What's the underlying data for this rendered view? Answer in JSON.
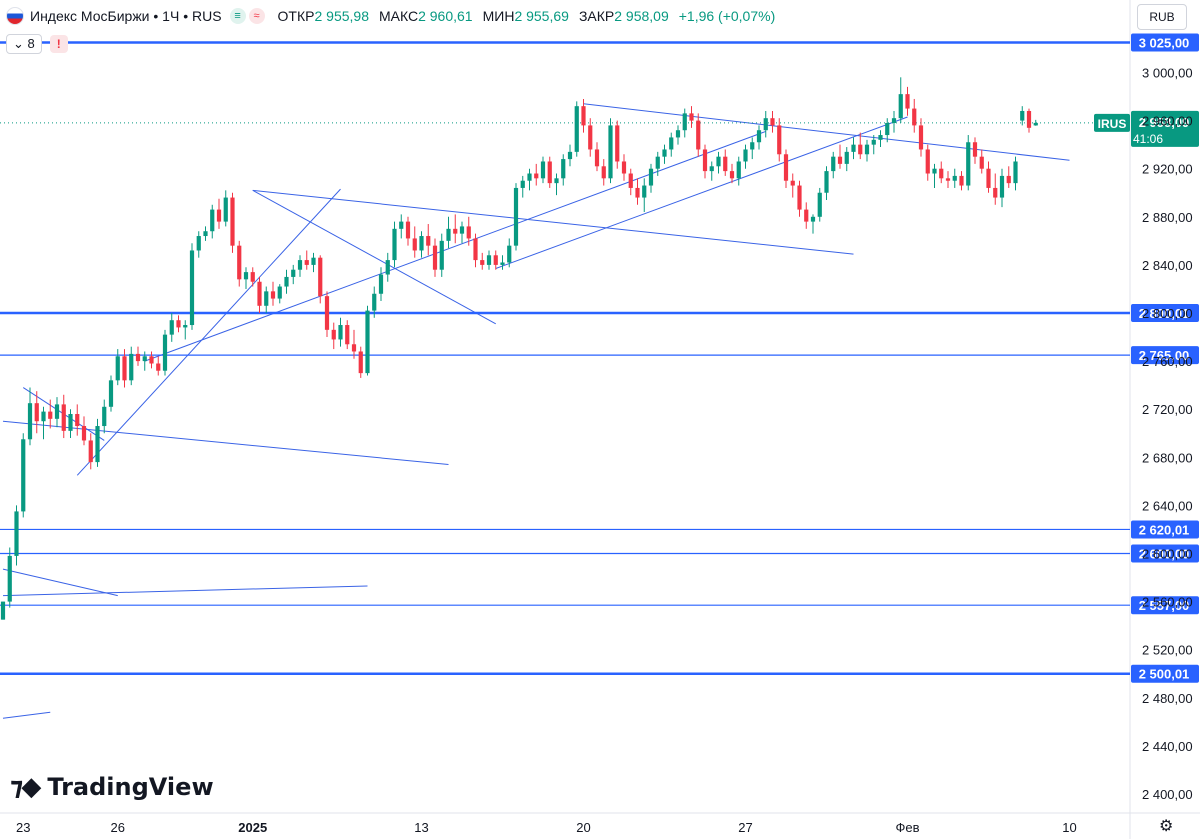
{
  "header": {
    "symbol_title": "Индекс МосБиржи • 1Ч • RUS",
    "badge_green": "≡",
    "badge_red": "≈",
    "ohlc": [
      {
        "label": "ОТКР",
        "value": "2 955,98"
      },
      {
        "label": "МАКС",
        "value": "2 960,61"
      },
      {
        "label": "МИН",
        "value": "2 955,69"
      },
      {
        "label": "ЗАКР",
        "value": "2 958,09"
      }
    ],
    "change": "+1,96 (+0,07%)",
    "indicator_count": "8",
    "warning": "!"
  },
  "currency_button": "RUB",
  "brand": "TradingView",
  "colors": {
    "up": "#089981",
    "down": "#f23645",
    "line": "#2962ff",
    "trend": "#3a63e6"
  },
  "chart_data": {
    "type": "candlestick",
    "symbol": "Индекс МосБиржи",
    "timeframe": "1Ч",
    "ylim": [
      2380,
      3040
    ],
    "y_ticks": [
      2400,
      2440,
      2480,
      2520,
      2560,
      2600,
      2640,
      2680,
      2720,
      2760,
      2800,
      2840,
      2880,
      2920,
      2960,
      3000
    ],
    "y_tick_labels": [
      "2 400,00",
      "2 440,00",
      "2 480,00",
      "2 520,00",
      "2 560,00",
      "2 600,00",
      "2 640,00",
      "2 680,00",
      "2 720,00",
      "2 760,00",
      "2 800,00",
      "2 840,00",
      "2 880,00",
      "2 920,00",
      "2 960,00",
      "3 000,00"
    ],
    "x_labels": [
      {
        "label": "23",
        "i": 3
      },
      {
        "label": "26",
        "i": 17
      },
      {
        "label": "2025",
        "i": 37
      },
      {
        "label": "13",
        "i": 62
      },
      {
        "label": "20",
        "i": 86
      },
      {
        "label": "27",
        "i": 110
      },
      {
        "label": "Фев",
        "i": 134
      },
      {
        "label": "10",
        "i": 158
      }
    ],
    "horizontal_levels": [
      {
        "value": 3025.0,
        "label": "3 025,00",
        "bold": true
      },
      {
        "value": 2800.01,
        "label": "2 800,01",
        "bold": true
      },
      {
        "value": 2765.0,
        "label": "2 765,00",
        "bold": false
      },
      {
        "value": 2620.01,
        "label": "2 620,01",
        "bold": false
      },
      {
        "value": 2600.0,
        "label": "2 600,00",
        "bold": false
      },
      {
        "value": 2557.0,
        "label": "2 557,00",
        "bold": false
      },
      {
        "value": 2500.01,
        "label": "2 500,01",
        "bold": true
      }
    ],
    "last_price": {
      "value": 2958.09,
      "label": "2 958,09",
      "ticker": "IRUS",
      "countdown": "41:06"
    },
    "trendlines": [
      [
        0,
        2710,
        66,
        2674
      ],
      [
        3,
        2738,
        15,
        2694
      ],
      [
        11,
        2665,
        50,
        2903
      ],
      [
        21,
        2760,
        113,
        2951
      ],
      [
        37,
        2902,
        73,
        2791
      ],
      [
        37,
        2902,
        126,
        2849
      ],
      [
        73,
        2837,
        134,
        2963
      ],
      [
        86,
        2974,
        158,
        2927
      ],
      [
        0,
        2587,
        17,
        2565
      ],
      [
        0,
        2565,
        54,
        2573
      ],
      [
        0,
        2463,
        7,
        2468
      ]
    ],
    "candles": [
      {
        "o": 2545,
        "h": 2560,
        "l": 2545,
        "c": 2560
      },
      {
        "o": 2560,
        "h": 2605,
        "l": 2555,
        "c": 2598
      },
      {
        "o": 2598,
        "h": 2640,
        "l": 2590,
        "c": 2635
      },
      {
        "o": 2635,
        "h": 2700,
        "l": 2630,
        "c": 2695
      },
      {
        "o": 2695,
        "h": 2738,
        "l": 2690,
        "c": 2725
      },
      {
        "o": 2725,
        "h": 2735,
        "l": 2700,
        "c": 2710
      },
      {
        "o": 2710,
        "h": 2722,
        "l": 2695,
        "c": 2718
      },
      {
        "o": 2718,
        "h": 2728,
        "l": 2704,
        "c": 2712
      },
      {
        "o": 2712,
        "h": 2730,
        "l": 2705,
        "c": 2724
      },
      {
        "o": 2724,
        "h": 2732,
        "l": 2696,
        "c": 2702
      },
      {
        "o": 2702,
        "h": 2720,
        "l": 2696,
        "c": 2716
      },
      {
        "o": 2716,
        "h": 2724,
        "l": 2698,
        "c": 2706
      },
      {
        "o": 2706,
        "h": 2714,
        "l": 2690,
        "c": 2694
      },
      {
        "o": 2694,
        "h": 2700,
        "l": 2670,
        "c": 2676
      },
      {
        "o": 2676,
        "h": 2712,
        "l": 2672,
        "c": 2706
      },
      {
        "o": 2706,
        "h": 2728,
        "l": 2700,
        "c": 2722
      },
      {
        "o": 2722,
        "h": 2748,
        "l": 2718,
        "c": 2744
      },
      {
        "o": 2744,
        "h": 2770,
        "l": 2740,
        "c": 2764
      },
      {
        "o": 2764,
        "h": 2770,
        "l": 2738,
        "c": 2744
      },
      {
        "o": 2744,
        "h": 2772,
        "l": 2740,
        "c": 2766
      },
      {
        "o": 2766,
        "h": 2772,
        "l": 2756,
        "c": 2760
      },
      {
        "o": 2760,
        "h": 2768,
        "l": 2752,
        "c": 2764
      },
      {
        "o": 2764,
        "h": 2768,
        "l": 2754,
        "c": 2758
      },
      {
        "o": 2758,
        "h": 2764,
        "l": 2748,
        "c": 2752
      },
      {
        "o": 2752,
        "h": 2786,
        "l": 2748,
        "c": 2782
      },
      {
        "o": 2782,
        "h": 2800,
        "l": 2776,
        "c": 2794
      },
      {
        "o": 2794,
        "h": 2798,
        "l": 2784,
        "c": 2788
      },
      {
        "o": 2788,
        "h": 2794,
        "l": 2778,
        "c": 2790
      },
      {
        "o": 2790,
        "h": 2858,
        "l": 2786,
        "c": 2852
      },
      {
        "o": 2852,
        "h": 2868,
        "l": 2846,
        "c": 2864
      },
      {
        "o": 2864,
        "h": 2872,
        "l": 2860,
        "c": 2868
      },
      {
        "o": 2868,
        "h": 2890,
        "l": 2862,
        "c": 2886
      },
      {
        "o": 2886,
        "h": 2895,
        "l": 2870,
        "c": 2876
      },
      {
        "o": 2876,
        "h": 2902,
        "l": 2872,
        "c": 2896
      },
      {
        "o": 2896,
        "h": 2900,
        "l": 2850,
        "c": 2856
      },
      {
        "o": 2856,
        "h": 2860,
        "l": 2822,
        "c": 2828
      },
      {
        "o": 2828,
        "h": 2838,
        "l": 2820,
        "c": 2834
      },
      {
        "o": 2834,
        "h": 2838,
        "l": 2822,
        "c": 2826
      },
      {
        "o": 2826,
        "h": 2830,
        "l": 2800,
        "c": 2806
      },
      {
        "o": 2806,
        "h": 2822,
        "l": 2800,
        "c": 2818
      },
      {
        "o": 2818,
        "h": 2826,
        "l": 2806,
        "c": 2812
      },
      {
        "o": 2812,
        "h": 2824,
        "l": 2808,
        "c": 2822
      },
      {
        "o": 2822,
        "h": 2836,
        "l": 2816,
        "c": 2830
      },
      {
        "o": 2830,
        "h": 2840,
        "l": 2824,
        "c": 2836
      },
      {
        "o": 2836,
        "h": 2848,
        "l": 2830,
        "c": 2844
      },
      {
        "o": 2844,
        "h": 2852,
        "l": 2836,
        "c": 2840
      },
      {
        "o": 2840,
        "h": 2850,
        "l": 2834,
        "c": 2846
      },
      {
        "o": 2846,
        "h": 2848,
        "l": 2808,
        "c": 2814
      },
      {
        "o": 2814,
        "h": 2818,
        "l": 2780,
        "c": 2786
      },
      {
        "o": 2786,
        "h": 2792,
        "l": 2770,
        "c": 2778
      },
      {
        "o": 2778,
        "h": 2796,
        "l": 2772,
        "c": 2790
      },
      {
        "o": 2790,
        "h": 2794,
        "l": 2770,
        "c": 2774
      },
      {
        "o": 2774,
        "h": 2786,
        "l": 2762,
        "c": 2768
      },
      {
        "o": 2768,
        "h": 2772,
        "l": 2746,
        "c": 2750
      },
      {
        "o": 2750,
        "h": 2806,
        "l": 2748,
        "c": 2802
      },
      {
        "o": 2802,
        "h": 2822,
        "l": 2796,
        "c": 2816
      },
      {
        "o": 2816,
        "h": 2838,
        "l": 2810,
        "c": 2832
      },
      {
        "o": 2832,
        "h": 2850,
        "l": 2826,
        "c": 2844
      },
      {
        "o": 2844,
        "h": 2876,
        "l": 2838,
        "c": 2870
      },
      {
        "o": 2870,
        "h": 2882,
        "l": 2862,
        "c": 2876
      },
      {
        "o": 2876,
        "h": 2880,
        "l": 2856,
        "c": 2862
      },
      {
        "o": 2862,
        "h": 2872,
        "l": 2846,
        "c": 2852
      },
      {
        "o": 2852,
        "h": 2868,
        "l": 2846,
        "c": 2864
      },
      {
        "o": 2864,
        "h": 2874,
        "l": 2848,
        "c": 2856
      },
      {
        "o": 2856,
        "h": 2862,
        "l": 2830,
        "c": 2836
      },
      {
        "o": 2836,
        "h": 2866,
        "l": 2830,
        "c": 2860
      },
      {
        "o": 2860,
        "h": 2880,
        "l": 2854,
        "c": 2870
      },
      {
        "o": 2870,
        "h": 2882,
        "l": 2858,
        "c": 2866
      },
      {
        "o": 2866,
        "h": 2876,
        "l": 2858,
        "c": 2872
      },
      {
        "o": 2872,
        "h": 2880,
        "l": 2856,
        "c": 2862
      },
      {
        "o": 2862,
        "h": 2866,
        "l": 2838,
        "c": 2844
      },
      {
        "o": 2844,
        "h": 2850,
        "l": 2836,
        "c": 2840
      },
      {
        "o": 2840,
        "h": 2852,
        "l": 2836,
        "c": 2848
      },
      {
        "o": 2848,
        "h": 2852,
        "l": 2836,
        "c": 2840
      },
      {
        "o": 2840,
        "h": 2848,
        "l": 2836,
        "c": 2842
      },
      {
        "o": 2842,
        "h": 2862,
        "l": 2838,
        "c": 2856
      },
      {
        "o": 2856,
        "h": 2908,
        "l": 2852,
        "c": 2904
      },
      {
        "o": 2904,
        "h": 2914,
        "l": 2896,
        "c": 2910
      },
      {
        "o": 2910,
        "h": 2920,
        "l": 2902,
        "c": 2916
      },
      {
        "o": 2916,
        "h": 2924,
        "l": 2906,
        "c": 2912
      },
      {
        "o": 2912,
        "h": 2930,
        "l": 2908,
        "c": 2926
      },
      {
        "o": 2926,
        "h": 2930,
        "l": 2904,
        "c": 2908
      },
      {
        "o": 2908,
        "h": 2916,
        "l": 2898,
        "c": 2912
      },
      {
        "o": 2912,
        "h": 2932,
        "l": 2906,
        "c": 2928
      },
      {
        "o": 2928,
        "h": 2940,
        "l": 2922,
        "c": 2934
      },
      {
        "o": 2934,
        "h": 2976,
        "l": 2930,
        "c": 2972
      },
      {
        "o": 2972,
        "h": 2978,
        "l": 2950,
        "c": 2956
      },
      {
        "o": 2956,
        "h": 2962,
        "l": 2930,
        "c": 2936
      },
      {
        "o": 2936,
        "h": 2942,
        "l": 2918,
        "c": 2922
      },
      {
        "o": 2922,
        "h": 2928,
        "l": 2906,
        "c": 2912
      },
      {
        "o": 2912,
        "h": 2962,
        "l": 2908,
        "c": 2956
      },
      {
        "o": 2956,
        "h": 2960,
        "l": 2920,
        "c": 2926
      },
      {
        "o": 2926,
        "h": 2932,
        "l": 2910,
        "c": 2916
      },
      {
        "o": 2916,
        "h": 2920,
        "l": 2898,
        "c": 2904
      },
      {
        "o": 2904,
        "h": 2912,
        "l": 2890,
        "c": 2896
      },
      {
        "o": 2896,
        "h": 2912,
        "l": 2884,
        "c": 2906
      },
      {
        "o": 2906,
        "h": 2924,
        "l": 2900,
        "c": 2920
      },
      {
        "o": 2920,
        "h": 2934,
        "l": 2914,
        "c": 2930
      },
      {
        "o": 2930,
        "h": 2940,
        "l": 2924,
        "c": 2936
      },
      {
        "o": 2936,
        "h": 2950,
        "l": 2930,
        "c": 2946
      },
      {
        "o": 2946,
        "h": 2956,
        "l": 2940,
        "c": 2952
      },
      {
        "o": 2952,
        "h": 2970,
        "l": 2946,
        "c": 2966
      },
      {
        "o": 2966,
        "h": 2972,
        "l": 2954,
        "c": 2960
      },
      {
        "o": 2960,
        "h": 2966,
        "l": 2930,
        "c": 2936
      },
      {
        "o": 2936,
        "h": 2940,
        "l": 2912,
        "c": 2918
      },
      {
        "o": 2918,
        "h": 2926,
        "l": 2910,
        "c": 2922
      },
      {
        "o": 2922,
        "h": 2934,
        "l": 2916,
        "c": 2930
      },
      {
        "o": 2930,
        "h": 2936,
        "l": 2914,
        "c": 2918
      },
      {
        "o": 2918,
        "h": 2924,
        "l": 2908,
        "c": 2912
      },
      {
        "o": 2912,
        "h": 2930,
        "l": 2906,
        "c": 2926
      },
      {
        "o": 2926,
        "h": 2940,
        "l": 2920,
        "c": 2936
      },
      {
        "o": 2936,
        "h": 2946,
        "l": 2928,
        "c": 2942
      },
      {
        "o": 2942,
        "h": 2956,
        "l": 2936,
        "c": 2952
      },
      {
        "o": 2952,
        "h": 2968,
        "l": 2946,
        "c": 2962
      },
      {
        "o": 2962,
        "h": 2968,
        "l": 2950,
        "c": 2956
      },
      {
        "o": 2956,
        "h": 2962,
        "l": 2926,
        "c": 2932
      },
      {
        "o": 2932,
        "h": 2936,
        "l": 2904,
        "c": 2910
      },
      {
        "o": 2910,
        "h": 2916,
        "l": 2896,
        "c": 2906
      },
      {
        "o": 2906,
        "h": 2910,
        "l": 2880,
        "c": 2886
      },
      {
        "o": 2886,
        "h": 2892,
        "l": 2870,
        "c": 2876
      },
      {
        "o": 2876,
        "h": 2882,
        "l": 2866,
        "c": 2880
      },
      {
        "o": 2880,
        "h": 2904,
        "l": 2876,
        "c": 2900
      },
      {
        "o": 2900,
        "h": 2922,
        "l": 2894,
        "c": 2918
      },
      {
        "o": 2918,
        "h": 2934,
        "l": 2912,
        "c": 2930
      },
      {
        "o": 2930,
        "h": 2940,
        "l": 2920,
        "c": 2924
      },
      {
        "o": 2924,
        "h": 2938,
        "l": 2918,
        "c": 2934
      },
      {
        "o": 2934,
        "h": 2946,
        "l": 2928,
        "c": 2940
      },
      {
        "o": 2940,
        "h": 2950,
        "l": 2928,
        "c": 2932
      },
      {
        "o": 2932,
        "h": 2944,
        "l": 2926,
        "c": 2940
      },
      {
        "o": 2940,
        "h": 2948,
        "l": 2932,
        "c": 2944
      },
      {
        "o": 2944,
        "h": 2952,
        "l": 2938,
        "c": 2948
      },
      {
        "o": 2948,
        "h": 2962,
        "l": 2942,
        "c": 2958
      },
      {
        "o": 2958,
        "h": 2968,
        "l": 2950,
        "c": 2962
      },
      {
        "o": 2962,
        "h": 2996,
        "l": 2958,
        "c": 2982
      },
      {
        "o": 2982,
        "h": 2988,
        "l": 2964,
        "c": 2970
      },
      {
        "o": 2970,
        "h": 2978,
        "l": 2950,
        "c": 2956
      },
      {
        "o": 2956,
        "h": 2962,
        "l": 2930,
        "c": 2936
      },
      {
        "o": 2936,
        "h": 2940,
        "l": 2910,
        "c": 2916
      },
      {
        "o": 2916,
        "h": 2924,
        "l": 2904,
        "c": 2920
      },
      {
        "o": 2920,
        "h": 2926,
        "l": 2908,
        "c": 2912
      },
      {
        "o": 2912,
        "h": 2918,
        "l": 2904,
        "c": 2910
      },
      {
        "o": 2910,
        "h": 2920,
        "l": 2904,
        "c": 2914
      },
      {
        "o": 2914,
        "h": 2918,
        "l": 2902,
        "c": 2906
      },
      {
        "o": 2906,
        "h": 2948,
        "l": 2902,
        "c": 2942
      },
      {
        "o": 2942,
        "h": 2946,
        "l": 2924,
        "c": 2930
      },
      {
        "o": 2930,
        "h": 2936,
        "l": 2916,
        "c": 2920
      },
      {
        "o": 2920,
        "h": 2926,
        "l": 2900,
        "c": 2904
      },
      {
        "o": 2904,
        "h": 2916,
        "l": 2890,
        "c": 2896
      },
      {
        "o": 2896,
        "h": 2920,
        "l": 2888,
        "c": 2914
      },
      {
        "o": 2914,
        "h": 2922,
        "l": 2904,
        "c": 2908
      },
      {
        "o": 2908,
        "h": 2930,
        "l": 2902,
        "c": 2926
      },
      {
        "o": 2960,
        "h": 2972,
        "l": 2956,
        "c": 2968
      },
      {
        "o": 2968,
        "h": 2970,
        "l": 2950,
        "c": 2954
      },
      {
        "o": 2955.98,
        "h": 2960.61,
        "l": 2955.69,
        "c": 2958.09
      }
    ]
  }
}
